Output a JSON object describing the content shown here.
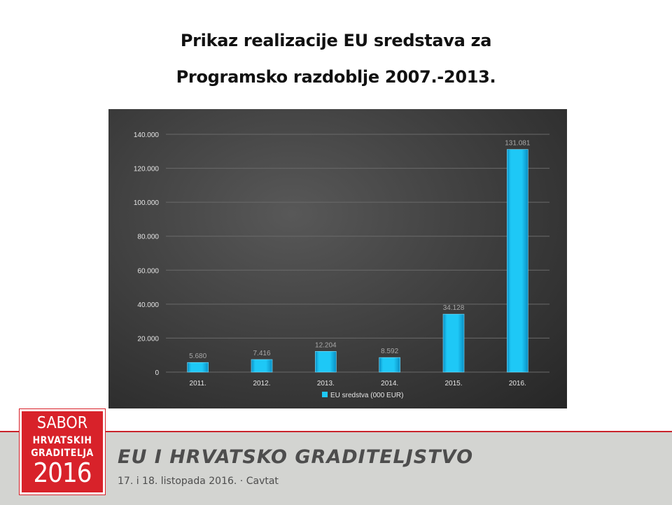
{
  "slide": {
    "title_line1": "Prikaz realizacije EU sredstava za",
    "title_line2": "Programsko razdoblje 2007.-2013."
  },
  "chart_data": {
    "type": "bar",
    "categories": [
      "2011.",
      "2012.",
      "2013.",
      "2014.",
      "2015.",
      "2016."
    ],
    "series": [
      {
        "name": "EU sredstva (000 EUR)",
        "values": [
          5680,
          7416,
          12204,
          8592,
          34128,
          131081
        ],
        "value_labels": [
          "5.680",
          "7.416",
          "12.204",
          "8.592",
          "34.128",
          "131.081"
        ]
      }
    ],
    "y_ticks": [
      0,
      20000,
      40000,
      60000,
      80000,
      100000,
      120000,
      140000
    ],
    "y_tick_labels": [
      "0",
      "20.000",
      "40.000",
      "60.000",
      "80.000",
      "100.000",
      "120.000",
      "140.000"
    ],
    "ylim": [
      0,
      140000
    ],
    "grid": true,
    "legend_position": "bottom",
    "colors": {
      "bar": "#1ec8f6",
      "bar_dark": "#0a8fc4",
      "background": "#3c3c3c"
    }
  },
  "footer": {
    "logo_line1": "SABOR",
    "logo_line2": "HRVATSKIH",
    "logo_line3": "GRADITELJA",
    "logo_line4": "2016",
    "event_title": "EU I HRVATSKO GRADITELJSTVO",
    "event_date": "17. i 18. listopada 2016.  ·  Cavtat",
    "accent": "#d8222a"
  }
}
